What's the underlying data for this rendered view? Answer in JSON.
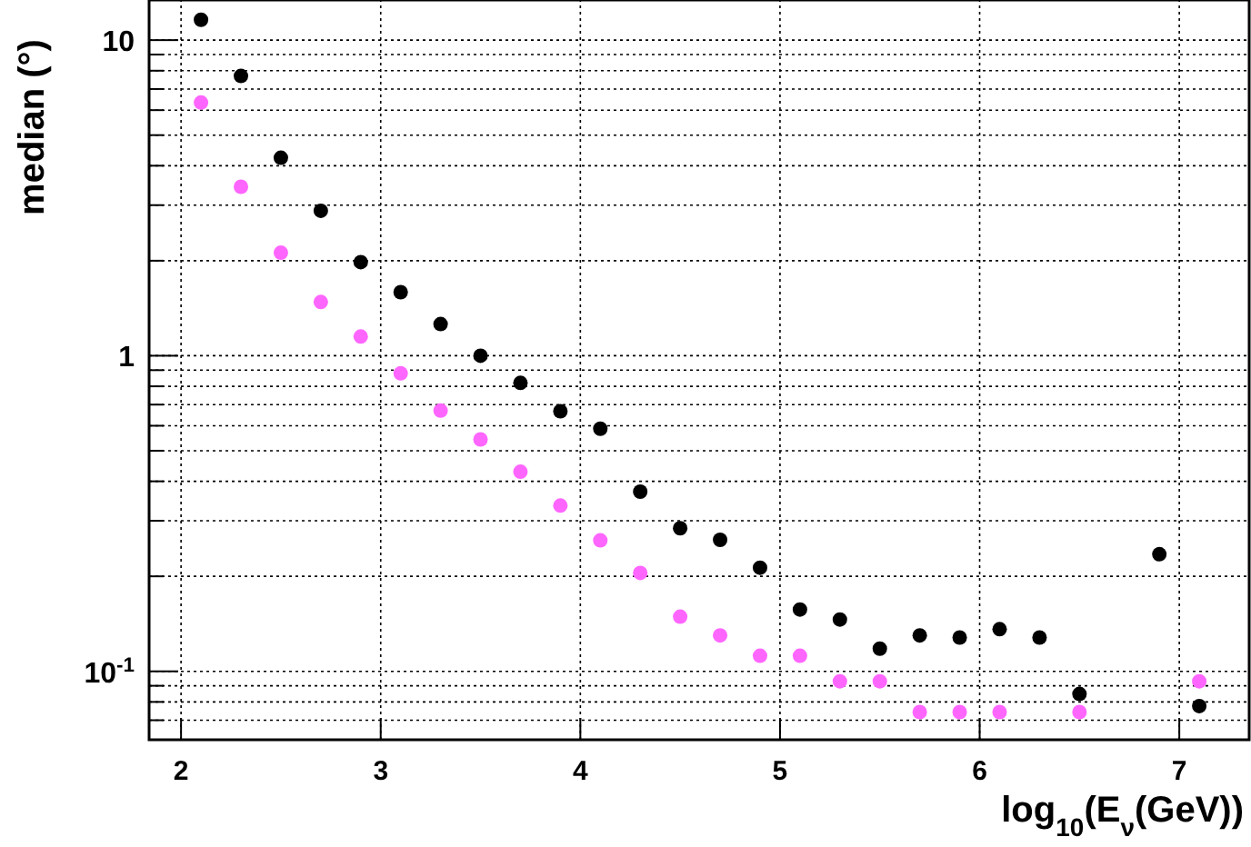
{
  "chart_data": {
    "type": "scatter",
    "xlabel": "log$_{10}$(E$_{ν}$(GeV))",
    "ylabel": "median (°)",
    "log": "y",
    "grid": true,
    "marker": "circle",
    "line_style": "dotted",
    "xlim": [
      1.84,
      7.35
    ],
    "xticks": [
      2,
      3,
      4,
      5,
      6,
      7
    ],
    "ylim": [
      0.0607,
      13.4
    ],
    "yticks": [
      {
        "value": 0.07,
        "label": null
      },
      {
        "value": 0.08,
        "label": null
      },
      {
        "value": 0.09,
        "label": null
      },
      {
        "value": 0.1,
        "label": "10$^{-1}$"
      },
      {
        "value": 0.2,
        "label": null
      },
      {
        "value": 0.3,
        "label": null
      },
      {
        "value": 0.4,
        "label": null
      },
      {
        "value": 0.5,
        "label": null
      },
      {
        "value": 0.6,
        "label": null
      },
      {
        "value": 0.7,
        "label": null
      },
      {
        "value": 0.8,
        "label": null
      },
      {
        "value": 0.9,
        "label": null
      },
      1,
      {
        "value": 2,
        "label": null
      },
      {
        "value": 3,
        "label": null
      },
      {
        "value": 4,
        "label": null
      },
      {
        "value": 5,
        "label": null
      },
      {
        "value": 6,
        "label": null
      },
      {
        "value": 7,
        "label": null
      },
      {
        "value": 8,
        "label": null
      },
      {
        "value": 9,
        "label": null
      },
      10
    ],
    "x": [
      2.1,
      2.3,
      2.5,
      2.7,
      2.9,
      3.1,
      3.3,
      3.5,
      3.7,
      3.9,
      4.1,
      4.3,
      4.5,
      4.7,
      4.9,
      5.1,
      5.3,
      5.5,
      5.7,
      5.9,
      6.1,
      6.3,
      6.5,
      6.7,
      6.9,
      7.1
    ],
    "series": [
      {
        "color": "#000000",
        "values": [
          11.6,
          7.7,
          4.24,
          2.88,
          1.98,
          1.59,
          1.26,
          1.0,
          0.82,
          0.667,
          0.587,
          0.371,
          0.284,
          0.261,
          0.213,
          0.157,
          0.146,
          0.118,
          0.13,
          0.128,
          0.136,
          0.128,
          0.0848,
          null,
          0.235,
          0.0776
        ]
      },
      {
        "color": "#ff66ff",
        "values": [
          6.34,
          3.43,
          2.12,
          1.48,
          1.15,
          0.879,
          0.67,
          0.543,
          0.429,
          0.335,
          0.26,
          0.205,
          0.149,
          0.13,
          0.112,
          0.112,
          0.093,
          0.093,
          0.0743,
          0.0743,
          0.0743,
          null,
          0.0743,
          null,
          null,
          0.093
        ]
      }
    ]
  }
}
